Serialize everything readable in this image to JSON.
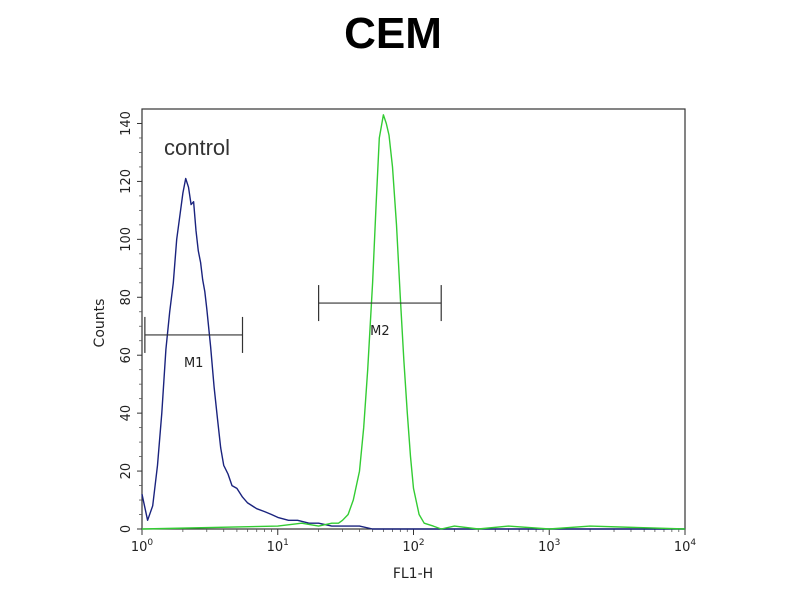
{
  "chart_data": {
    "type": "line",
    "title": "CEM",
    "xlabel": "FL1-H",
    "ylabel": "Counts",
    "xscale": "log",
    "xlim": [
      1,
      10000
    ],
    "ylim": [
      0,
      145
    ],
    "x_ticks": [
      {
        "value": 1,
        "base": "10",
        "exp": "0"
      },
      {
        "value": 10,
        "base": "10",
        "exp": "1"
      },
      {
        "value": 100,
        "base": "10",
        "exp": "2"
      },
      {
        "value": 1000,
        "base": "10",
        "exp": "3"
      },
      {
        "value": 10000,
        "base": "10",
        "exp": "4"
      }
    ],
    "y_ticks": [
      0,
      20,
      40,
      60,
      80,
      100,
      120,
      140
    ],
    "annotation": "control",
    "gates": [
      {
        "label": "M1",
        "x_start": 1.05,
        "x_end": 5.5,
        "y": 67
      },
      {
        "label": "M2",
        "x_start": 20,
        "x_end": 160,
        "y": 78
      }
    ],
    "series": [
      {
        "color": "#1a237e",
        "x": [
          1.0,
          1.1,
          1.2,
          1.3,
          1.4,
          1.5,
          1.6,
          1.7,
          1.8,
          1.9,
          2.0,
          2.1,
          2.2,
          2.3,
          2.4,
          2.5,
          2.6,
          2.7,
          2.8,
          2.9,
          3.0,
          3.2,
          3.4,
          3.6,
          3.8,
          4.0,
          4.3,
          4.6,
          5.0,
          5.5,
          6.0,
          7.0,
          8.0,
          9.0,
          10,
          12,
          14,
          17,
          20,
          25,
          30,
          40,
          50,
          70,
          100,
          200,
          500,
          1000,
          10000
        ],
        "y": [
          12,
          3,
          8,
          22,
          40,
          62,
          75,
          85,
          100,
          108,
          116,
          121,
          118,
          112,
          113,
          103,
          96,
          92,
          86,
          82,
          76,
          63,
          49,
          38,
          28,
          22,
          19,
          15,
          14,
          11,
          9,
          7,
          6,
          5,
          4,
          3,
          3,
          2,
          2,
          1,
          1,
          1,
          0,
          0,
          0,
          0,
          0,
          0,
          0
        ]
      },
      {
        "color": "#33cc33",
        "x": [
          1,
          10,
          15,
          20,
          25,
          28,
          30,
          33,
          36,
          40,
          43,
          46,
          50,
          53,
          56,
          60,
          63,
          66,
          70,
          75,
          80,
          85,
          90,
          95,
          100,
          110,
          120,
          140,
          160,
          200,
          300,
          500,
          1000,
          2000,
          10000
        ],
        "y": [
          0,
          1,
          2,
          1,
          2,
          2,
          3,
          5,
          10,
          20,
          35,
          55,
          85,
          112,
          135,
          143,
          140,
          136,
          125,
          105,
          80,
          58,
          40,
          25,
          14,
          5,
          2,
          1,
          0,
          1,
          0,
          1,
          0,
          1,
          0
        ]
      }
    ]
  }
}
